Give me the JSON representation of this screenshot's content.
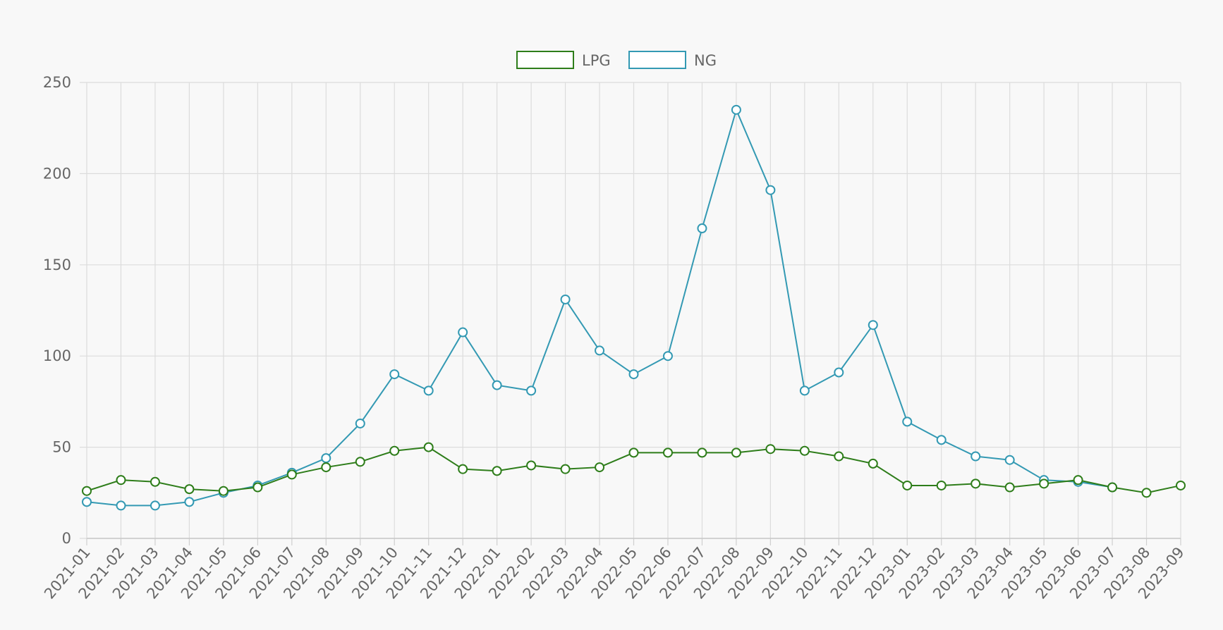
{
  "chart_data": {
    "type": "line",
    "categories": [
      "2021-01",
      "2021-02",
      "2021-03",
      "2021-04",
      "2021-05",
      "2021-06",
      "2021-07",
      "2021-08",
      "2021-09",
      "2021-10",
      "2021-11",
      "2021-12",
      "2022-01",
      "2022-02",
      "2022-03",
      "2022-04",
      "2022-05",
      "2022-06",
      "2022-07",
      "2022-08",
      "2022-09",
      "2022-10",
      "2022-11",
      "2022-12",
      "2023-01",
      "2023-02",
      "2023-03",
      "2023-04",
      "2023-05",
      "2023-06",
      "2023-07",
      "2023-08",
      "2023-09"
    ],
    "series": [
      {
        "name": "LPG",
        "color": "#2e7d1a",
        "values": [
          26,
          32,
          31,
          27,
          26,
          28,
          35,
          39,
          42,
          48,
          50,
          38,
          37,
          40,
          38,
          39,
          47,
          47,
          47,
          47,
          49,
          48,
          45,
          41,
          29,
          29,
          30,
          28,
          30,
          32,
          28,
          25,
          29
        ]
      },
      {
        "name": "NG",
        "color": "#3399b3",
        "values": [
          20,
          18,
          18,
          20,
          25,
          29,
          36,
          44,
          63,
          90,
          81,
          113,
          84,
          81,
          131,
          103,
          90,
          100,
          170,
          235,
          191,
          81,
          91,
          117,
          64,
          54,
          45,
          43,
          32,
          31,
          28,
          null,
          null
        ]
      }
    ],
    "yticks": [
      "0",
      "50",
      "100",
      "150",
      "200",
      "250"
    ],
    "ylim": [
      0,
      250
    ],
    "grid": true,
    "legend_position": "top-center"
  }
}
